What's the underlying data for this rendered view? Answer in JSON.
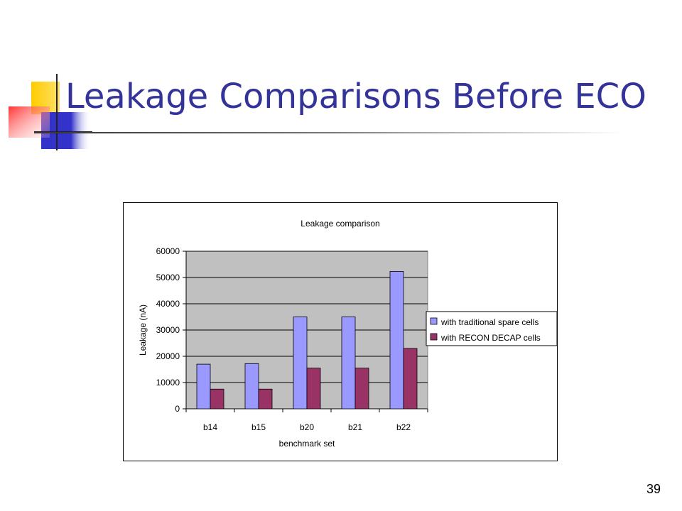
{
  "slide": {
    "title": "Leakage Comparisons Before ECO",
    "page_number": "39"
  },
  "colors": {
    "title": "#333399",
    "plot_background": "#c0c0c0",
    "series_traditional": "#9999ff",
    "series_recon": "#993366"
  },
  "chart_data": {
    "type": "bar",
    "title": "Leakage comparison",
    "xlabel": "benchmark set",
    "ylabel": "Leakage (nA)",
    "categories": [
      "b14",
      "b15",
      "b20",
      "b21",
      "b22"
    ],
    "series": [
      {
        "name": "with traditional spare cells",
        "values": [
          17000,
          17200,
          35000,
          35000,
          52300
        ],
        "color": "#9999ff"
      },
      {
        "name": "with RECON DECAP cells",
        "values": [
          7500,
          7500,
          15500,
          15500,
          23000
        ],
        "color": "#993366"
      }
    ],
    "ylim": [
      0,
      60000
    ],
    "yticks": [
      0,
      10000,
      20000,
      30000,
      40000,
      50000,
      60000
    ],
    "grid": true,
    "legend_position": "right"
  }
}
